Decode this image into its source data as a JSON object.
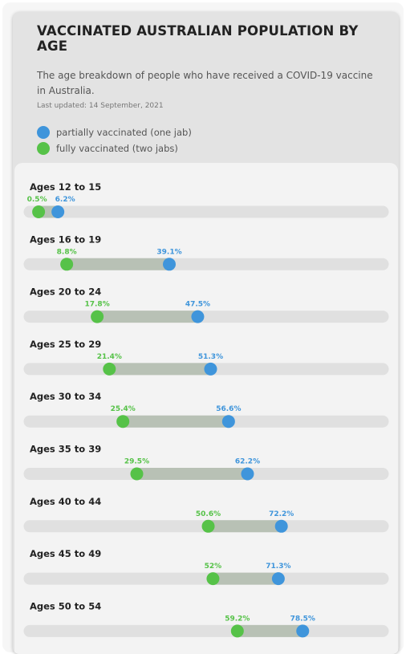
{
  "header": {
    "title": "VACCINATED AUSTRALIAN POPULATION BY AGE",
    "subtitle": "The age breakdown of people who have received a COVID-19 vaccine in Australia.",
    "updated": "Last updated: 14 September, 2021"
  },
  "legend": {
    "items": [
      {
        "label": "partially vaccinated (one jab)",
        "color": "#3f95db"
      },
      {
        "label": "fully vaccinated (two jabs)",
        "color": "#56c248"
      }
    ]
  },
  "colors": {
    "partial": "#3f95db",
    "full": "#56c248",
    "track": "#e0e0e0",
    "range": "#b8c1b5"
  },
  "chart_data": {
    "type": "dumbbell",
    "xlim": [
      0,
      100
    ],
    "value_suffix": "%",
    "categories": [
      "Ages 12 to 15",
      "Ages 16 to 19",
      "Ages 20 to 24",
      "Ages 25 to 29",
      "Ages 30 to 34",
      "Ages 35 to 39",
      "Ages 40 to 44",
      "Ages 45 to 49",
      "Ages 50 to 54"
    ],
    "series": [
      {
        "name": "fully vaccinated (two jabs)",
        "values": [
          0.5,
          8.8,
          17.8,
          21.4,
          25.4,
          29.5,
          50.6,
          52,
          59.2
        ]
      },
      {
        "name": "partially vaccinated (one jab)",
        "values": [
          6.2,
          39.1,
          47.5,
          51.3,
          56.6,
          62.2,
          72.2,
          71.3,
          78.5
        ]
      }
    ]
  }
}
